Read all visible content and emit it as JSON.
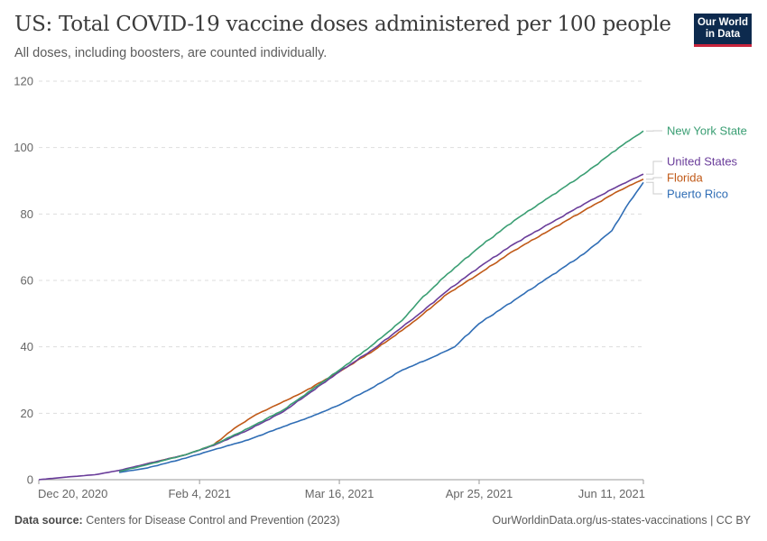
{
  "header": {
    "title": "US: Total COVID-19 vaccine doses administered per 100 people",
    "subtitle": "All doses, including boosters, are counted individually."
  },
  "logo": {
    "line1": "Our World",
    "line2": "in Data"
  },
  "footer": {
    "source_label": "Data source:",
    "source_text": "Centers for Disease Control and Prevention (2023)",
    "url_text": "OurWorldinData.org/us-states-vaccinations | CC BY"
  },
  "colors": {
    "New York State": "#3a9e73",
    "United States": "#6a3d9a",
    "Florida": "#c05917",
    "Puerto Rico": "#2f6db5"
  },
  "chart_data": {
    "type": "line",
    "title": "US: Total COVID-19 vaccine doses administered per 100 people",
    "subtitle": "All doses, including boosters, are counted individually.",
    "xlabel": "",
    "ylabel": "",
    "ylim": [
      0,
      120
    ],
    "yticks": [
      0,
      20,
      40,
      60,
      80,
      100,
      120
    ],
    "xlim": [
      "2020-12-20",
      "2021-06-11"
    ],
    "xticks": [
      "Dec 20, 2020",
      "Feb 4, 2021",
      "Mar 16, 2021",
      "Apr 25, 2021",
      "Jun 11, 2021"
    ],
    "grid": true,
    "legend": "right (line-end labels)",
    "series": [
      {
        "name": "New York State",
        "points": [
          [
            "2021-01-12",
            2.5
          ],
          [
            "2021-01-20",
            4.5
          ],
          [
            "2021-01-31",
            7.5
          ],
          [
            "2021-02-08",
            10.5
          ],
          [
            "2021-02-18",
            15.5
          ],
          [
            "2021-02-28",
            21
          ],
          [
            "2021-03-08",
            27
          ],
          [
            "2021-03-16",
            33
          ],
          [
            "2021-03-26",
            41
          ],
          [
            "2021-04-03",
            48
          ],
          [
            "2021-04-08",
            54
          ],
          [
            "2021-04-16",
            62
          ],
          [
            "2021-04-25",
            70
          ],
          [
            "2021-05-05",
            78
          ],
          [
            "2021-05-15",
            85
          ],
          [
            "2021-05-25",
            92
          ],
          [
            "2021-06-04",
            100
          ],
          [
            "2021-06-11",
            105
          ]
        ]
      },
      {
        "name": "United States",
        "points": [
          [
            "2020-12-20",
            0
          ],
          [
            "2020-12-27",
            0.7
          ],
          [
            "2021-01-05",
            1.5
          ],
          [
            "2021-01-12",
            2.8
          ],
          [
            "2021-01-20",
            4.8
          ],
          [
            "2021-01-31",
            7.5
          ],
          [
            "2021-02-08",
            10.3
          ],
          [
            "2021-02-18",
            15
          ],
          [
            "2021-02-28",
            20.5
          ],
          [
            "2021-03-08",
            26.5
          ],
          [
            "2021-03-16",
            32.5
          ],
          [
            "2021-03-26",
            39.5
          ],
          [
            "2021-04-03",
            46
          ],
          [
            "2021-04-08",
            50
          ],
          [
            "2021-04-16",
            57
          ],
          [
            "2021-04-25",
            64
          ],
          [
            "2021-05-05",
            71
          ],
          [
            "2021-05-15",
            77
          ],
          [
            "2021-05-25",
            83
          ],
          [
            "2021-06-04",
            88.5
          ],
          [
            "2021-06-11",
            92
          ]
        ]
      },
      {
        "name": "Florida",
        "points": [
          [
            "2021-01-12",
            2.5
          ],
          [
            "2021-01-20",
            4.8
          ],
          [
            "2021-01-31",
            7.5
          ],
          [
            "2021-02-08",
            10.5
          ],
          [
            "2021-02-14",
            15.5
          ],
          [
            "2021-02-20",
            19.5
          ],
          [
            "2021-02-26",
            22.5
          ],
          [
            "2021-03-05",
            26
          ],
          [
            "2021-03-16",
            32.5
          ],
          [
            "2021-03-26",
            39
          ],
          [
            "2021-04-03",
            45
          ],
          [
            "2021-04-08",
            49
          ],
          [
            "2021-04-16",
            56
          ],
          [
            "2021-04-25",
            62
          ],
          [
            "2021-05-05",
            69
          ],
          [
            "2021-05-15",
            75
          ],
          [
            "2021-05-25",
            81
          ],
          [
            "2021-06-04",
            87
          ],
          [
            "2021-06-11",
            90.5
          ]
        ]
      },
      {
        "name": "Puerto Rico",
        "points": [
          [
            "2021-01-12",
            2.2
          ],
          [
            "2021-01-20",
            3.5
          ],
          [
            "2021-01-31",
            6.5
          ],
          [
            "2021-02-08",
            9
          ],
          [
            "2021-02-18",
            12
          ],
          [
            "2021-02-28",
            16
          ],
          [
            "2021-03-08",
            19
          ],
          [
            "2021-03-16",
            22.5
          ],
          [
            "2021-03-26",
            28
          ],
          [
            "2021-04-03",
            33
          ],
          [
            "2021-04-12",
            37
          ],
          [
            "2021-04-18",
            40
          ],
          [
            "2021-04-25",
            47
          ],
          [
            "2021-05-05",
            54
          ],
          [
            "2021-05-15",
            61
          ],
          [
            "2021-05-25",
            68
          ],
          [
            "2021-06-02",
            75
          ],
          [
            "2021-06-06",
            82
          ],
          [
            "2021-06-11",
            89.5
          ]
        ]
      }
    ]
  }
}
